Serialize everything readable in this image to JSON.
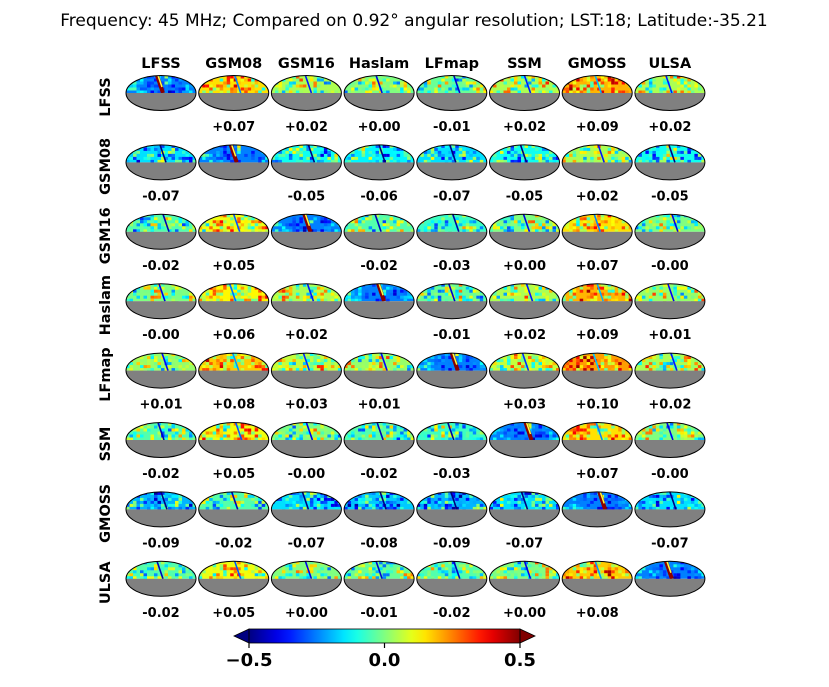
{
  "chart_data": {
    "type": "heatmap",
    "title": "Frequency: 45 MHz; Compared on 0.92° angular resolution; LST:18; Latitude:-35.21",
    "models": [
      "LFSS",
      "GSM08",
      "GSM16",
      "Haslam",
      "LFmap",
      "SSM",
      "GMOSS",
      "ULSA"
    ],
    "diff_labels": [
      [
        "",
        "+0.07",
        "+0.02",
        "+0.00",
        "-0.01",
        "+0.02",
        "+0.09",
        "+0.02"
      ],
      [
        "-0.07",
        "",
        "-0.05",
        "-0.06",
        "-0.07",
        "-0.05",
        "+0.02",
        "-0.05"
      ],
      [
        "-0.02",
        "+0.05",
        "",
        "-0.02",
        "-0.03",
        "+0.00",
        "+0.07",
        "-0.00"
      ],
      [
        "-0.00",
        "+0.06",
        "+0.02",
        "",
        "-0.01",
        "+0.02",
        "+0.09",
        "+0.01"
      ],
      [
        "+0.01",
        "+0.08",
        "+0.03",
        "+0.01",
        "",
        "+0.03",
        "+0.10",
        "+0.02"
      ],
      [
        "-0.02",
        "+0.05",
        "-0.00",
        "-0.02",
        "-0.03",
        "",
        "+0.07",
        "-0.00"
      ],
      [
        "-0.09",
        "-0.02",
        "-0.07",
        "-0.08",
        "-0.09",
        "-0.07",
        "",
        "-0.07"
      ],
      [
        "-0.02",
        "+0.05",
        "+0.00",
        "-0.01",
        "-0.02",
        "+0.00",
        "+0.08",
        ""
      ]
    ],
    "colorbar": {
      "colormap": "jet",
      "range": [
        -0.5,
        0.5
      ],
      "ticks": [
        -0.5,
        0.0,
        0.5
      ],
      "tick_labels": [
        "−0.5",
        "0.0",
        "0.5"
      ],
      "extend": "both"
    }
  }
}
